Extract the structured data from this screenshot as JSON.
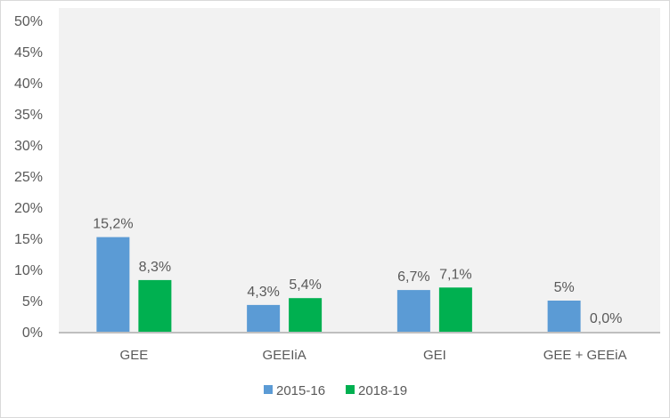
{
  "chart_data": {
    "type": "bar",
    "title": "",
    "xlabel": "",
    "ylabel": "",
    "categories": [
      "GEE",
      "GEEIiA",
      "GEI",
      "GEE + GEEiA"
    ],
    "series": [
      {
        "name": "2015-16",
        "color": "#5b9bd5",
        "values": [
          15.2,
          4.3,
          6.7,
          5
        ],
        "labels": [
          "15,2%",
          "4,3%",
          "6,7%",
          "5%"
        ]
      },
      {
        "name": "2018-19",
        "color": "#00b050",
        "values": [
          8.3,
          5.4,
          7.1,
          0.0
        ],
        "labels": [
          "8,3%",
          "5,4%",
          "7,1%",
          "0,0%"
        ]
      }
    ],
    "ylim": [
      0,
      50
    ],
    "yticks": [
      "0%",
      "5%",
      "10%",
      "15%",
      "20%",
      "25%",
      "30%",
      "35%",
      "40%",
      "45%",
      "50%"
    ],
    "grid": false,
    "plot_background": "#f2f2f2",
    "legend_position": "bottom"
  }
}
